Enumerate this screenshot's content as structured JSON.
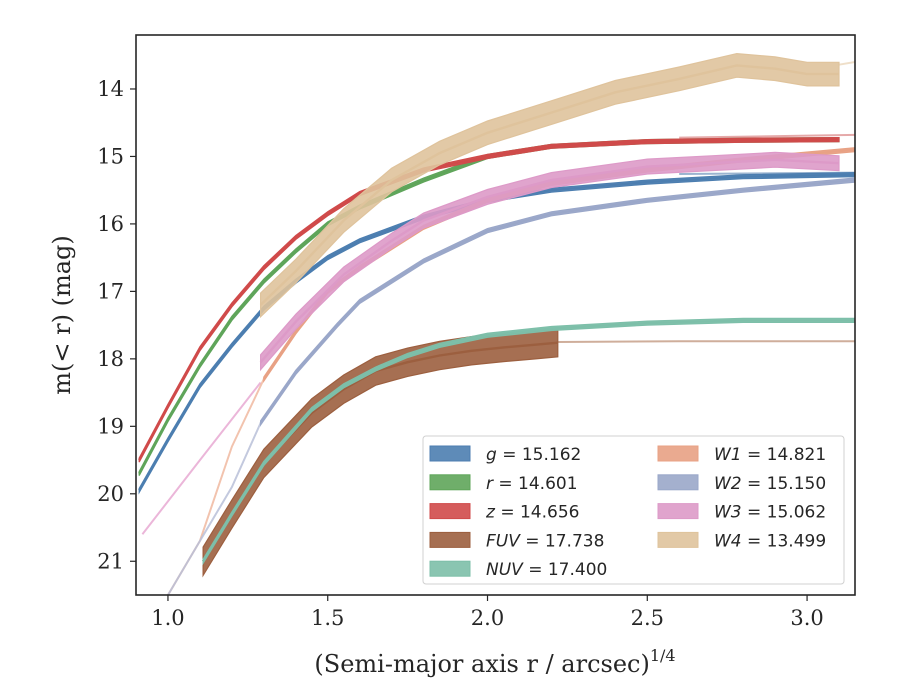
{
  "chart_data": {
    "type": "line",
    "xlabel": "(Semi-major axis r / arcsec)",
    "xlabel_exponent": "1/4",
    "ylabel": "m(< r) (mag)",
    "xlim": [
      0.9,
      3.15
    ],
    "ylim": [
      21.5,
      13.2
    ],
    "y_inverted": true,
    "x_ticks": [
      1.0,
      1.5,
      2.0,
      2.5,
      3.0
    ],
    "x_tick_labels": [
      "1.0",
      "1.5",
      "2.0",
      "2.5",
      "3.0"
    ],
    "y_ticks": [
      14,
      15,
      16,
      17,
      18,
      19,
      20,
      21
    ],
    "y_tick_labels": [
      "14",
      "15",
      "16",
      "17",
      "18",
      "19",
      "20",
      "21"
    ],
    "grid": false,
    "legend_position": "lower-right",
    "series": [
      {
        "name": "g = 15.162",
        "label_var": "g",
        "label_val": "15.162",
        "color": "#4c7eb0",
        "band_width": 0.06,
        "x": [
          0.91,
          1.0,
          1.1,
          1.2,
          1.3,
          1.4,
          1.5,
          1.6,
          1.8,
          2.0,
          2.2,
          2.5,
          2.8,
          3.15
        ],
        "y": [
          19.95,
          19.2,
          18.4,
          17.8,
          17.25,
          16.85,
          16.5,
          16.25,
          15.9,
          15.65,
          15.5,
          15.38,
          15.3,
          15.27
        ]
      },
      {
        "name": "r = 14.601",
        "label_var": "r",
        "label_val": "14.601",
        "color": "#5fa55a",
        "band_width": 0.06,
        "x": [
          0.91,
          1.0,
          1.1,
          1.2,
          1.3,
          1.4,
          1.5,
          1.6,
          1.8,
          2.0,
          2.2,
          2.5,
          2.8,
          3.1
        ],
        "y": [
          19.7,
          18.9,
          18.1,
          17.4,
          16.85,
          16.4,
          16.0,
          15.75,
          15.35,
          15.0,
          14.85,
          14.78,
          14.76,
          14.75
        ]
      },
      {
        "name": "z = 14.656",
        "label_var": "z",
        "label_val": "14.656",
        "color": "#d04a4a",
        "band_width": 0.06,
        "x": [
          0.91,
          1.0,
          1.1,
          1.2,
          1.3,
          1.4,
          1.5,
          1.6,
          1.8,
          2.0,
          2.2,
          2.5,
          2.8,
          3.1
        ],
        "y": [
          19.5,
          18.7,
          17.85,
          17.2,
          16.65,
          16.2,
          15.85,
          15.55,
          15.2,
          15.0,
          14.85,
          14.78,
          14.76,
          14.75
        ]
      },
      {
        "name": "FUV = 17.738",
        "label_var": "FUV",
        "label_val": "17.738",
        "color": "#9c5f3f",
        "band_width": 0.42,
        "x": [
          1.11,
          1.2,
          1.3,
          1.45,
          1.55,
          1.65,
          1.75,
          1.85,
          1.95,
          2.05,
          2.15,
          2.22
        ],
        "y": [
          21.0,
          20.3,
          19.55,
          18.8,
          18.45,
          18.18,
          18.05,
          17.95,
          17.88,
          17.83,
          17.79,
          17.76
        ]
      },
      {
        "name": "NUV = 17.400",
        "label_var": "NUV",
        "label_val": "17.400",
        "color": "#7dbfa9",
        "band_width": 0.06,
        "x": [
          1.11,
          1.2,
          1.3,
          1.45,
          1.55,
          1.65,
          1.75,
          1.85,
          2.0,
          2.2,
          2.5,
          2.8,
          3.15
        ],
        "y": [
          21.0,
          20.3,
          19.55,
          18.75,
          18.4,
          18.15,
          17.95,
          17.8,
          17.65,
          17.55,
          17.47,
          17.43,
          17.43
        ]
      },
      {
        "name": "W1 = 14.821",
        "label_var": "W1",
        "label_val": "14.821",
        "color": "#e8a184",
        "band_width": 0.06,
        "x": [
          1.3,
          1.4,
          1.5,
          1.6,
          1.8,
          2.0,
          2.2,
          2.5,
          2.8,
          3.15
        ],
        "y": [
          18.3,
          17.6,
          17.0,
          16.65,
          16.05,
          15.65,
          15.4,
          15.2,
          15.05,
          14.9
        ]
      },
      {
        "name": "W2 = 15.150",
        "label_var": "W2",
        "label_val": "15.150",
        "color": "#9aa7c9",
        "band_width": 0.06,
        "x": [
          1.29,
          1.4,
          1.53,
          1.6,
          1.8,
          2.0,
          2.2,
          2.5,
          2.8,
          3.15
        ],
        "y": [
          18.95,
          18.2,
          17.5,
          17.15,
          16.55,
          16.1,
          15.85,
          15.65,
          15.5,
          15.35
        ]
      },
      {
        "name": "W3 = 15.062",
        "label_var": "W3",
        "label_val": "15.062",
        "color": "#dd9ac8",
        "band_width": 0.22,
        "x": [
          1.29,
          1.4,
          1.55,
          1.7,
          1.8,
          2.0,
          2.2,
          2.5,
          2.7,
          2.9,
          3.1
        ],
        "y": [
          18.05,
          17.45,
          16.75,
          16.25,
          15.95,
          15.6,
          15.35,
          15.15,
          15.1,
          15.05,
          15.1
        ]
      },
      {
        "name": "W4 = 13.499",
        "label_var": "W4",
        "label_val": "13.499",
        "color": "#dfc39c",
        "band_width": 0.35,
        "x": [
          1.29,
          1.4,
          1.55,
          1.7,
          1.85,
          2.0,
          2.2,
          2.4,
          2.6,
          2.78,
          2.9,
          3.0,
          3.1
        ],
        "y": [
          17.2,
          16.7,
          15.95,
          15.35,
          14.95,
          14.65,
          14.35,
          14.05,
          13.85,
          13.65,
          13.7,
          13.78,
          13.78
        ]
      }
    ],
    "faint_extensions": [
      {
        "series": 7,
        "color": "#e8a9d2",
        "x": [
          0.92,
          1.1,
          1.29
        ],
        "y": [
          20.6,
          19.5,
          18.35
        ]
      },
      {
        "series": 5,
        "color": "#f0b9a0",
        "x": [
          1.0,
          1.1,
          1.2,
          1.3
        ],
        "y": [
          21.5,
          20.7,
          19.3,
          18.3
        ]
      },
      {
        "series": 6,
        "color": "#b8c0d8",
        "x": [
          1.0,
          1.1,
          1.2,
          1.29
        ],
        "y": [
          21.5,
          20.7,
          19.9,
          18.95
        ]
      },
      {
        "series": 3,
        "color": "#c7a08a",
        "x": [
          2.22,
          2.6,
          3.15
        ],
        "y": [
          17.75,
          17.74,
          17.74
        ]
      },
      {
        "series": 0,
        "color": "#8aa7c8",
        "x": [
          2.6,
          3.15
        ],
        "y": [
          15.26,
          15.24
        ]
      },
      {
        "series": 2,
        "color": "#e09a9a",
        "x": [
          2.6,
          3.15
        ],
        "y": [
          14.72,
          14.68
        ]
      },
      {
        "series": 8,
        "color": "#ecd9bf",
        "x": [
          3.1,
          3.15
        ],
        "y": [
          13.64,
          13.6
        ]
      }
    ]
  }
}
